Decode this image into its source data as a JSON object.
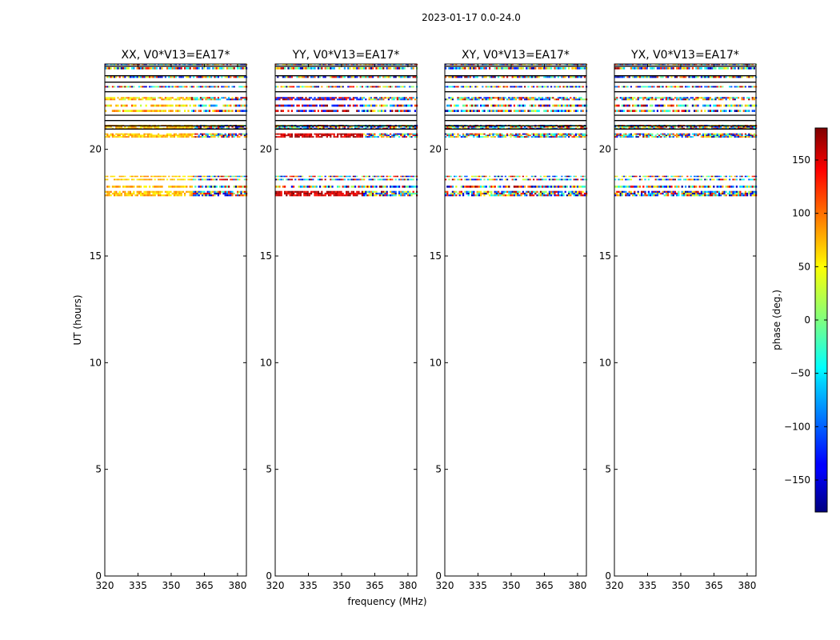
{
  "suptitle": "2023-01-17 0.0-24.0",
  "chart_data": {
    "type": "heatmap",
    "title": "2023-01-17 0.0-24.0",
    "xlabel": "frequency (MHz)",
    "ylabel": "UT (hours)",
    "xlim": [
      320,
      384
    ],
    "ylim": [
      0,
      24
    ],
    "xticks": [
      320,
      335,
      350,
      365,
      380
    ],
    "yticks": [
      0,
      5,
      10,
      15,
      20
    ],
    "panels": [
      {
        "title": "XX, V0*V13=EA17*",
        "mode": "xx"
      },
      {
        "title": "YY, V0*V13=EA17*",
        "mode": "yy"
      },
      {
        "title": "XY, V0*V13=EA17*",
        "mode": "cross"
      },
      {
        "title": "YX, V0*V13=EA17*",
        "mode": "cross"
      }
    ],
    "colorbar": {
      "label": "phase (deg.)",
      "range": [
        -180,
        180
      ],
      "ticks": [
        -150,
        -100,
        -50,
        0,
        50,
        100,
        150
      ],
      "colormap": "jet"
    },
    "data_bands_ut": [
      [
        17.8,
        18.05
      ],
      [
        18.2,
        18.3
      ],
      [
        18.55,
        18.62
      ],
      [
        18.7,
        18.76
      ],
      [
        20.55,
        20.75
      ],
      [
        20.95,
        21.15
      ],
      [
        21.75,
        21.85
      ],
      [
        22.0,
        22.1
      ],
      [
        22.3,
        22.45
      ],
      [
        22.9,
        22.97
      ],
      [
        23.35,
        23.42
      ],
      [
        23.75,
        23.85
      ],
      [
        23.95,
        24.0
      ]
    ],
    "black_lines_ut": [
      20.95,
      21.1,
      21.35,
      21.6,
      22.7,
      23.15,
      23.45,
      23.9
    ]
  },
  "colors": {
    "axis": "#000000",
    "background": "#ffffff"
  }
}
